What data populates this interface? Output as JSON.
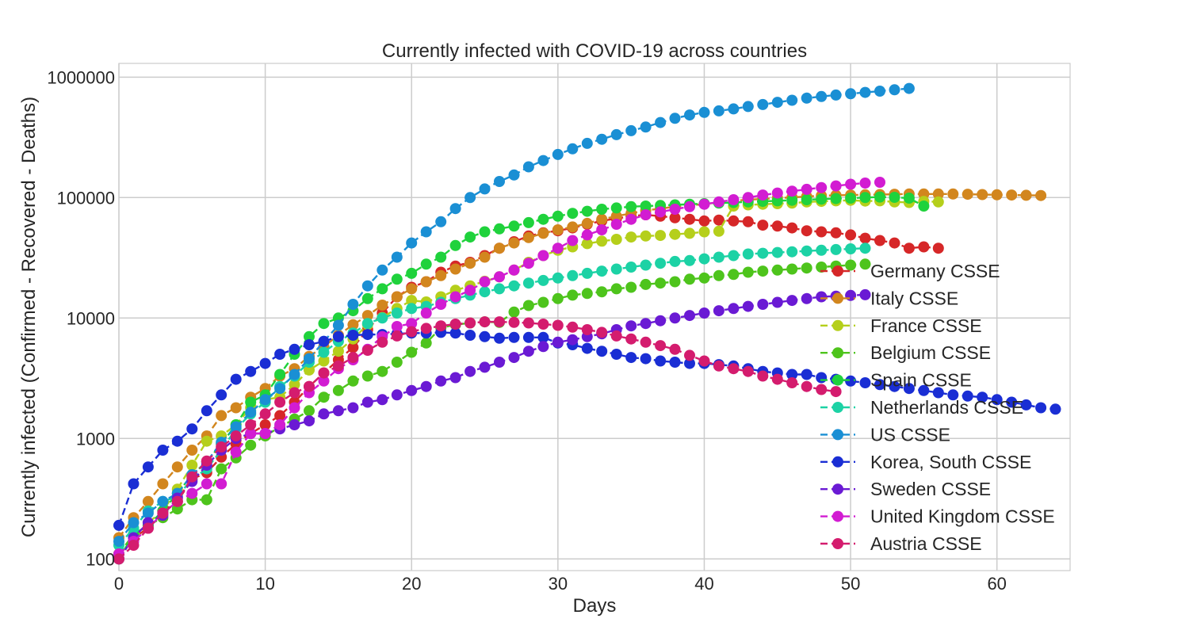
{
  "chart_data": {
    "type": "line",
    "title": "Currently infected with COVID-19 across countries",
    "xlabel": "Days",
    "ylabel": "Currently infected (Confirmed - Recovered - Deaths)",
    "xlim": [
      0,
      65
    ],
    "ylim": [
      80,
      1300000
    ],
    "yscale": "log",
    "xticks": [
      0,
      10,
      20,
      30,
      40,
      50,
      60
    ],
    "xtick_labels": [
      "0",
      "10",
      "20",
      "30",
      "40",
      "50",
      "60"
    ],
    "yticks": [
      100,
      1000,
      10000,
      100000,
      1000000
    ],
    "ytick_labels": [
      "100",
      "1000",
      "10000",
      "100000",
      "1000000"
    ],
    "grid": true,
    "legend_position": "lower-right",
    "line_style": "dashed with circle markers",
    "series": [
      {
        "name": "Germany CSSE",
        "color": "#d62728",
        "x_start": 0,
        "values": [
          100,
          150,
          180,
          250,
          300,
          460,
          520,
          700,
          900,
          1100,
          1300,
          1550,
          2000,
          2700,
          3500,
          4500,
          5700,
          8000,
          11000,
          15000,
          18000,
          20000,
          24000,
          27000,
          29000,
          33000,
          38000,
          43000,
          48000,
          51000,
          53000,
          56000,
          60000,
          64000,
          67000,
          70000,
          72000,
          70000,
          68000,
          66000,
          64000,
          65000,
          64000,
          63000,
          59000,
          58000,
          56000,
          53000,
          52000,
          51000,
          49000,
          46000,
          44000,
          42000,
          38000,
          39000,
          38000
        ]
      },
      {
        "name": "Italy CSSE",
        "color": "#d2861e",
        "x_start": 0,
        "values": [
          150,
          220,
          300,
          420,
          580,
          800,
          1050,
          1550,
          1800,
          2200,
          2600,
          3300,
          3800,
          4800,
          5800,
          7200,
          8800,
          10500,
          12800,
          15000,
          17500,
          20000,
          22500,
          25500,
          28500,
          32000,
          38000,
          42000,
          46500,
          50500,
          54000,
          57000,
          61000,
          66000,
          70000,
          74000,
          78000,
          81000,
          84000,
          86000,
          88500,
          91000,
          94000,
          96000,
          97500,
          99000,
          100500,
          102000,
          103500,
          104500,
          105000,
          105500,
          106000,
          106500,
          107000,
          107000,
          107000,
          107000,
          106500,
          106000,
          105500,
          105000,
          104500,
          104000
        ]
      },
      {
        "name": "France CSSE",
        "color": "#b5cf1b",
        "x_start": 0,
        "values": [
          110,
          140,
          200,
          250,
          380,
          600,
          950,
          1050,
          1300,
          1800,
          2100,
          2200,
          2800,
          3700,
          4400,
          5300,
          6700,
          8800,
          10100,
          12000,
          14000,
          13600,
          15000,
          17000,
          18500,
          20200,
          22000,
          25000,
          29000,
          33000,
          36500,
          39000,
          41500,
          43500,
          45000,
          47000,
          48000,
          48500,
          49500,
          50500,
          52000,
          52500,
          85000,
          87000,
          88000,
          89000,
          90000,
          92000,
          93000,
          94000,
          95000,
          93500,
          94000,
          92000,
          91000,
          93000,
          92000
        ]
      },
      {
        "name": "Belgium CSSE",
        "color": "#4ec41c",
        "x_start": 0,
        "values": [
          110,
          160,
          190,
          220,
          260,
          310,
          310,
          560,
          690,
          880,
          1050,
          1250,
          1450,
          1700,
          2200,
          2500,
          3000,
          3300,
          3600,
          4300,
          5200,
          6200,
          8300,
          8800,
          9100,
          9300,
          9200,
          11200,
          12700,
          13500,
          14500,
          15500,
          16000,
          16500,
          17500,
          18000,
          19000,
          19500,
          20000,
          21000,
          21500,
          22500,
          23000,
          24000,
          24500,
          25000,
          25500,
          26000,
          26500,
          27000,
          27500,
          28000
        ]
      },
      {
        "name": "Spain CSSE",
        "color": "#1fd23c",
        "x_start": 0,
        "values": [
          100,
          160,
          190,
          250,
          350,
          500,
          640,
          900,
          1300,
          2000,
          2300,
          3400,
          5000,
          7000,
          9000,
          10000,
          11500,
          14500,
          17500,
          21000,
          23500,
          28000,
          32000,
          40000,
          47000,
          52000,
          55000,
          58000,
          62000,
          66000,
          70000,
          74000,
          77000,
          80000,
          82000,
          84000,
          85000,
          86000,
          87000,
          88000,
          89000,
          90000,
          91000,
          92000,
          93000,
          94000,
          95000,
          96000,
          97000,
          98000,
          99000,
          100000,
          101000,
          100500,
          99000,
          85000
        ]
      },
      {
        "name": "Netherlands CSSE",
        "color": "#1cd2a5",
        "x_start": 0,
        "values": [
          130,
          180,
          250,
          300,
          330,
          460,
          560,
          800,
          1200,
          1600,
          2000,
          2700,
          3300,
          4300,
          5200,
          6400,
          7500,
          9000,
          10000,
          11000,
          12000,
          12500,
          13500,
          14500,
          15500,
          16500,
          17500,
          18500,
          19500,
          20500,
          21500,
          22500,
          23500,
          24500,
          25500,
          26500,
          27500,
          28500,
          29500,
          30000,
          31000,
          32000,
          33000,
          34000,
          34500,
          35000,
          35500,
          36000,
          36500,
          37000,
          37500,
          38000
        ]
      },
      {
        "name": "US CSSE",
        "color": "#1a8fd4",
        "x_start": 0,
        "values": [
          140,
          200,
          240,
          300,
          350,
          500,
          640,
          930,
          1250,
          1650,
          2100,
          2600,
          3400,
          4600,
          6400,
          8700,
          13000,
          18500,
          25000,
          32000,
          42000,
          52000,
          63000,
          81000,
          100000,
          118000,
          136000,
          154000,
          180000,
          203000,
          228000,
          254000,
          282000,
          305000,
          333000,
          359000,
          385000,
          420000,
          455000,
          485000,
          510000,
          525000,
          545000,
          570000,
          592000,
          618000,
          643000,
          670000,
          690000,
          710000,
          728000,
          747000,
          765000,
          785000,
          805000
        ]
      },
      {
        "name": "Korea, South CSSE",
        "color": "#1a2ed4",
        "x_start": 0,
        "values": [
          190,
          420,
          580,
          800,
          950,
          1200,
          1700,
          2300,
          3100,
          3600,
          4200,
          5000,
          5500,
          6000,
          6400,
          7000,
          7200,
          7300,
          7300,
          7400,
          7500,
          7500,
          7600,
          7500,
          7200,
          7000,
          6800,
          6900,
          6900,
          6900,
          6200,
          6000,
          5600,
          5300,
          5000,
          4700,
          4600,
          4400,
          4300,
          4200,
          4200,
          4100,
          4000,
          3800,
          3600,
          3500,
          3400,
          3400,
          3200,
          3100,
          3000,
          2900,
          2800,
          2700,
          2600,
          2500,
          2400,
          2300,
          2250,
          2200,
          2100,
          2000,
          1900,
          1800,
          1750
        ]
      },
      {
        "name": "Sweden CSSE",
        "color": "#6a1ad4",
        "x_start": 0,
        "values": [
          100,
          150,
          200,
          230,
          320,
          440,
          600,
          800,
          1000,
          1100,
          1100,
          1200,
          1300,
          1400,
          1600,
          1700,
          1800,
          2000,
          2100,
          2300,
          2500,
          2700,
          3000,
          3200,
          3600,
          3900,
          4300,
          4700,
          5300,
          5800,
          6300,
          6600,
          7000,
          7400,
          8000,
          8600,
          9000,
          9500,
          10000,
          10500,
          11000,
          11500,
          12000,
          12500,
          13000,
          13500,
          14000,
          14500,
          15000,
          15200,
          15400,
          15600
        ]
      },
      {
        "name": "United Kingdom CSSE",
        "color": "#d21cd2",
        "x_start": 0,
        "values": [
          110,
          140,
          180,
          240,
          300,
          350,
          420,
          420,
          770,
          1100,
          1100,
          1300,
          1800,
          2400,
          3000,
          3800,
          4500,
          5500,
          7000,
          8500,
          9000,
          11000,
          13000,
          15000,
          17000,
          20000,
          22000,
          25000,
          28500,
          33000,
          38000,
          44000,
          49000,
          54000,
          60000,
          66000,
          72000,
          76000,
          80000,
          84000,
          88000,
          92000,
          96000,
          100000,
          105000,
          109000,
          113000,
          117000,
          121000,
          125000,
          129000,
          132000,
          134000
        ]
      },
      {
        "name": "Austria CSSE",
        "color": "#d41c6e",
        "x_start": 0,
        "values": [
          100,
          130,
          180,
          240,
          300,
          480,
          650,
          850,
          1050,
          1300,
          1600,
          2000,
          2400,
          2700,
          3500,
          4000,
          4700,
          5400,
          6300,
          7100,
          7700,
          8200,
          8600,
          8900,
          9100,
          9300,
          9300,
          9200,
          9100,
          8900,
          8700,
          8400,
          8000,
          7600,
          7100,
          6700,
          6300,
          5900,
          5500,
          4900,
          4400,
          4000,
          3800,
          3600,
          3300,
          3100,
          2900,
          2700,
          2550,
          2450
        ]
      }
    ]
  }
}
